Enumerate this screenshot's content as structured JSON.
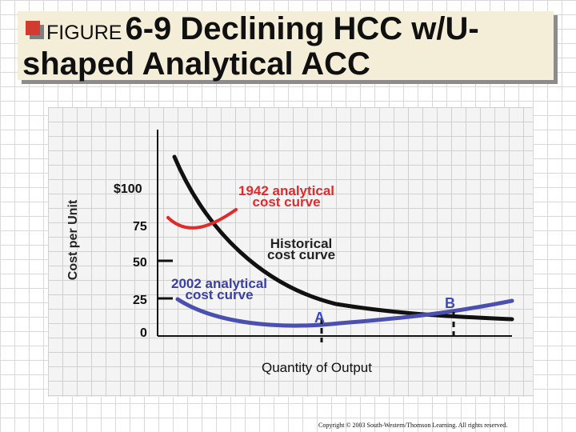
{
  "title": {
    "lead": "FIGURE",
    "line1": "6-9 Declining HCC w/U-",
    "line2": "shaped Analytical ACC"
  },
  "axes": {
    "ylabel": "Cost per Unit",
    "xlabel": "Quantity of Output",
    "ticks": [
      "$100",
      "75",
      "50",
      "25",
      "0"
    ]
  },
  "curves": {
    "analytical_1942": {
      "line1": "1942 analytical",
      "line2": "cost curve",
      "color": "#e02b2b"
    },
    "historical": {
      "line1": "Historical",
      "line2": "cost curve",
      "color": "#111111"
    },
    "analytical_2002": {
      "line1": "2002 analytical",
      "line2": "cost curve",
      "color": "#4a4fb0"
    }
  },
  "points": {
    "a": "A",
    "b": "B"
  },
  "footer": {
    "copyright": "Copyright © 2003 South-Western/Thomson Learning. All rights reserved."
  }
}
